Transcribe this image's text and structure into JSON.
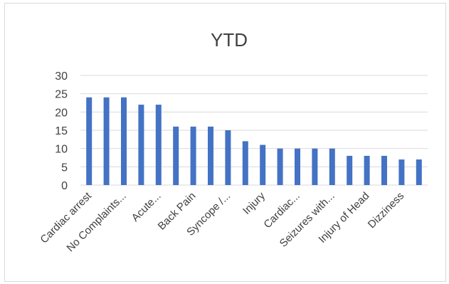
{
  "chart_data": {
    "type": "bar",
    "title": "YTD",
    "xlabel": "",
    "ylabel": "",
    "ylim": [
      0,
      30
    ],
    "yticks": [
      0,
      5,
      10,
      15,
      20,
      25,
      30
    ],
    "grid": true,
    "legend": "none",
    "bar_color": "#4472c4",
    "grid_color": "#d9d9d9",
    "text_color": "#404040",
    "categories": [
      "Cardiac arrest",
      "",
      "No Complaints...",
      "",
      "Acute...",
      "",
      "Back Pain",
      "",
      "Syncope /...",
      "",
      "Injury",
      "",
      "Cardiac...",
      "",
      "Seizures with...",
      "",
      "Injury of Head",
      "",
      "Dizziness",
      ""
    ],
    "values": [
      24,
      24,
      24,
      22,
      22,
      16,
      16,
      16,
      15,
      12,
      11,
      10,
      10,
      10,
      10,
      8,
      8,
      8,
      7,
      7
    ]
  }
}
